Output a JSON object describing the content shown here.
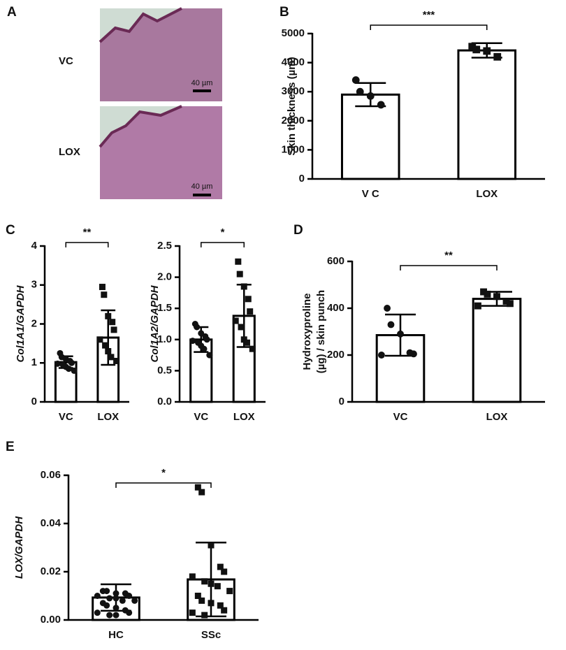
{
  "panel_a": {
    "letter": "A",
    "rows": [
      {
        "label": "VC",
        "scale_bar": "40 µm"
      },
      {
        "label": "LOX",
        "scale_bar": "40 µm"
      }
    ]
  },
  "chart_data": [
    {
      "type": "bar",
      "panel": "B",
      "ylabel": "Skin thickness (µm)",
      "ylabel_italic": false,
      "categories": [
        "V C",
        "LOX"
      ],
      "values": [
        2900,
        4420
      ],
      "errors": [
        400,
        250
      ],
      "points": [
        [
          3400,
          3000,
          2850,
          2550
        ],
        [
          4550,
          4450,
          4400,
          4200
        ]
      ],
      "markers": [
        "circle",
        "square"
      ],
      "ylim": [
        0,
        5000
      ],
      "yticks": [
        0,
        1000,
        2000,
        3000,
        4000,
        5000
      ],
      "significance": "***"
    },
    {
      "type": "bar",
      "panel": "C",
      "ylabel": "Col1A1/GAPDH",
      "ylabel_italic": true,
      "categories": [
        "VC",
        "LOX"
      ],
      "values": [
        1.02,
        1.65
      ],
      "errors": [
        0.15,
        0.7
      ],
      "points": [
        [
          1.25,
          1.15,
          1.1,
          1.05,
          1.0,
          0.98,
          0.95,
          0.9,
          0.85,
          0.8
        ],
        [
          2.95,
          2.75,
          2.2,
          2.05,
          1.85,
          1.6,
          1.45,
          1.3,
          1.15,
          1.05
        ]
      ],
      "markers": [
        "circle",
        "square"
      ],
      "ylim": [
        0,
        4
      ],
      "yticks": [
        0,
        1,
        2,
        3,
        4
      ],
      "significance": "**"
    },
    {
      "type": "bar",
      "panel": null,
      "ylabel": "Col1A2/GAPDH",
      "ylabel_italic": true,
      "categories": [
        "VC",
        "LOX"
      ],
      "values": [
        1.0,
        1.38
      ],
      "errors": [
        0.2,
        0.5
      ],
      "points": [
        [
          1.25,
          1.2,
          1.1,
          1.05,
          1.0,
          0.98,
          0.95,
          0.9,
          0.85,
          0.75
        ],
        [
          2.25,
          2.05,
          1.85,
          1.65,
          1.45,
          1.3,
          1.2,
          1.0,
          0.95,
          0.85
        ]
      ],
      "markers": [
        "circle",
        "square"
      ],
      "ylim": [
        0,
        2.5
      ],
      "yticks": [
        {
          "value": 0,
          "label": "0.0"
        },
        {
          "value": 0.5,
          "label": "0.5"
        },
        {
          "value": 1,
          "label": "1.0"
        },
        {
          "value": 1.5,
          "label": "1.5"
        },
        {
          "value": 2,
          "label": "2.0"
        },
        {
          "value": 2.5,
          "label": "2.5"
        }
      ],
      "significance": "*"
    },
    {
      "type": "bar",
      "panel": "D",
      "ylabel": [
        "Hydroxyproline",
        "(µg) / skin punch"
      ],
      "ylabel_italic": false,
      "categories": [
        "VC",
        "LOX"
      ],
      "values": [
        285,
        440
      ],
      "errors": [
        88,
        30
      ],
      "points": [
        [
          400,
          330,
          290,
          210,
          205,
          200
        ],
        [
          470,
          460,
          450,
          430,
          420,
          410
        ]
      ],
      "markers": [
        "circle",
        "square"
      ],
      "ylim": [
        0,
        600
      ],
      "yticks": [
        0,
        200,
        400,
        600
      ],
      "significance": "**"
    },
    {
      "type": "bar",
      "panel": "E",
      "ylabel": "LOX/GAPDH",
      "ylabel_italic": true,
      "categories": [
        "HC",
        "SSc"
      ],
      "values": [
        0.0093,
        0.0168
      ],
      "errors": [
        0.0055,
        0.0153
      ],
      "points": [
        [
          0.012,
          0.012,
          0.011,
          0.011,
          0.01,
          0.01,
          0.009,
          0.009,
          0.008,
          0.008,
          0.007,
          0.006,
          0.005,
          0.004,
          0.003,
          0.003,
          0.002,
          0.002
        ],
        [
          0.055,
          0.053,
          0.031,
          0.022,
          0.02,
          0.018,
          0.016,
          0.015,
          0.014,
          0.012,
          0.01,
          0.008,
          0.007,
          0.006,
          0.004,
          0.003,
          0.002
        ]
      ],
      "markers": [
        "circle",
        "square"
      ],
      "ylim": [
        0,
        0.06
      ],
      "yticks": [
        {
          "value": 0,
          "label": "0.00"
        },
        {
          "value": 0.02,
          "label": "0.02"
        },
        {
          "value": 0.04,
          "label": "0.04"
        },
        {
          "value": 0.06,
          "label": "0.06"
        }
      ],
      "significance": "*"
    }
  ]
}
